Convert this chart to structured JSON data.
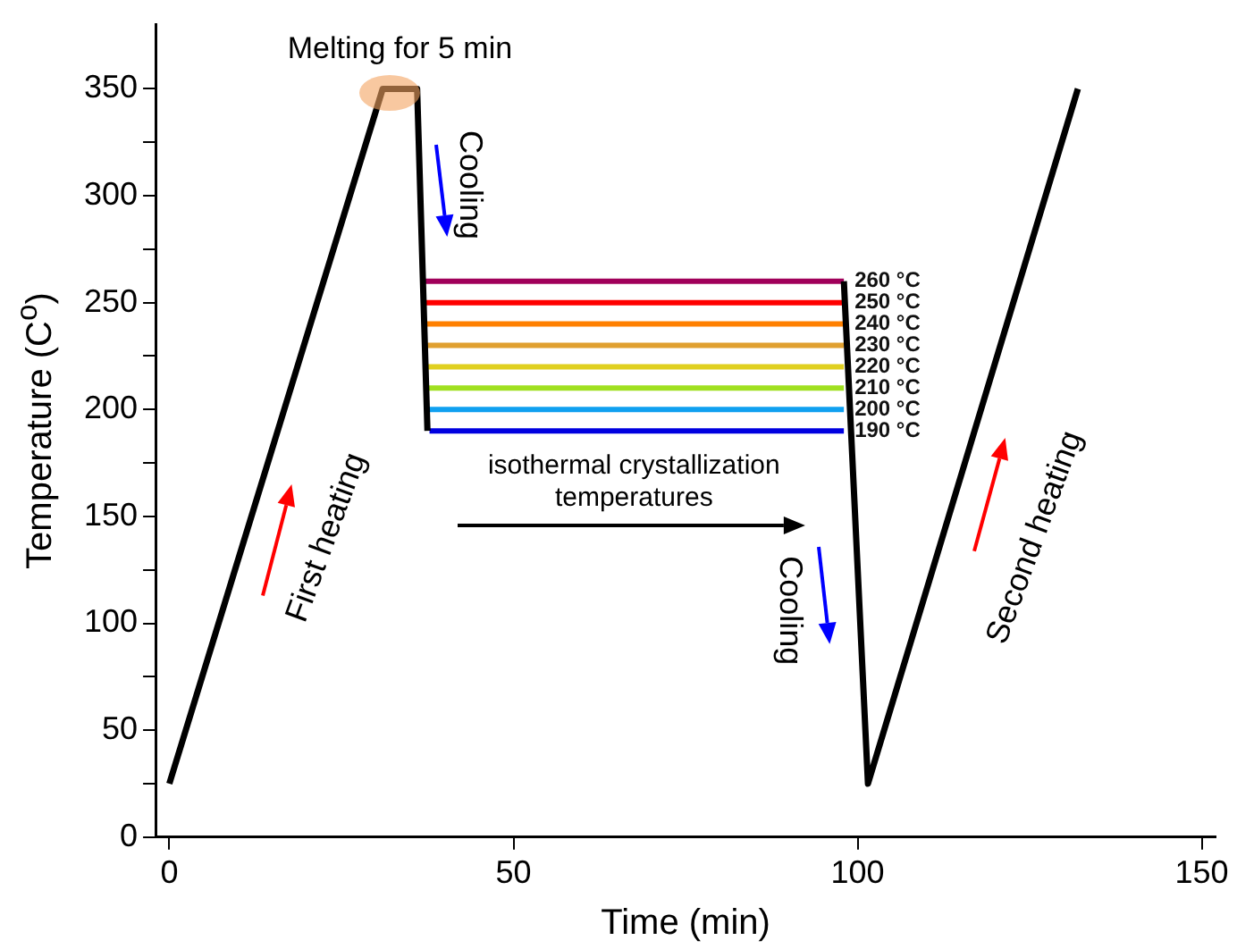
{
  "chart_data": {
    "type": "line",
    "xlabel": "Time (min)",
    "ylabel": "Temperature (C$^{o}$)",
    "xlim": [
      -2,
      152
    ],
    "xticks": [
      0,
      50,
      100,
      150
    ],
    "ylim": [
      0,
      380
    ],
    "yticks": [
      0,
      {
        "value": 25,
        "label": null
      },
      50,
      {
        "value": 75,
        "label": null
      },
      100,
      {
        "value": 125,
        "label": null
      },
      150,
      {
        "value": 175,
        "label": null
      },
      200,
      {
        "value": 225,
        "label": null
      },
      250,
      {
        "value": 275,
        "label": null
      },
      300,
      {
        "value": 325,
        "label": null
      },
      350
    ],
    "grid": false,
    "legend": false,
    "marker": "none",
    "series": [
      {
        "color": "#000000",
        "x": [
          0,
          31,
          36,
          37.5
        ],
        "values": [
          25,
          350,
          350,
          190
        ]
      },
      {
        "color": "#000000",
        "x": [
          98,
          101.5,
          132
        ],
        "values": [
          260,
          25,
          350
        ]
      },
      {
        "name": "260 °C",
        "color": "#a0005a",
        "x": [
          37,
          98
        ],
        "values": [
          260,
          260
        ]
      },
      {
        "name": "250 °C",
        "color": "#ff0000",
        "x": [
          37.2,
          98
        ],
        "values": [
          250,
          250
        ]
      },
      {
        "name": "240 °C",
        "color": "#ff8000",
        "x": [
          37.3,
          98
        ],
        "values": [
          240,
          240
        ]
      },
      {
        "name": "230 °C",
        "color": "#e0a030",
        "x": [
          37.4,
          98
        ],
        "values": [
          230,
          230
        ]
      },
      {
        "name": "220 °C",
        "color": "#e0d020",
        "x": [
          37.5,
          98
        ],
        "values": [
          220,
          220
        ]
      },
      {
        "name": "210 °C",
        "color": "#a0e020",
        "x": [
          37.6,
          98
        ],
        "values": [
          210,
          210
        ]
      },
      {
        "name": "200 °C",
        "color": "#10a0f0",
        "x": [
          37.7,
          98
        ],
        "values": [
          200,
          200
        ]
      },
      {
        "name": "190 °C",
        "color": "#0000e0",
        "x": [
          37.8,
          98
        ],
        "values": [
          190,
          190
        ]
      }
    ],
    "annotations": [
      {
        "text": "Melting for 5 min",
        "x": 33.5,
        "y": 350
      },
      "Cooling",
      "isothermal crystallization temperatures",
      "Cooling",
      "First heating",
      "Second heating"
    ]
  }
}
